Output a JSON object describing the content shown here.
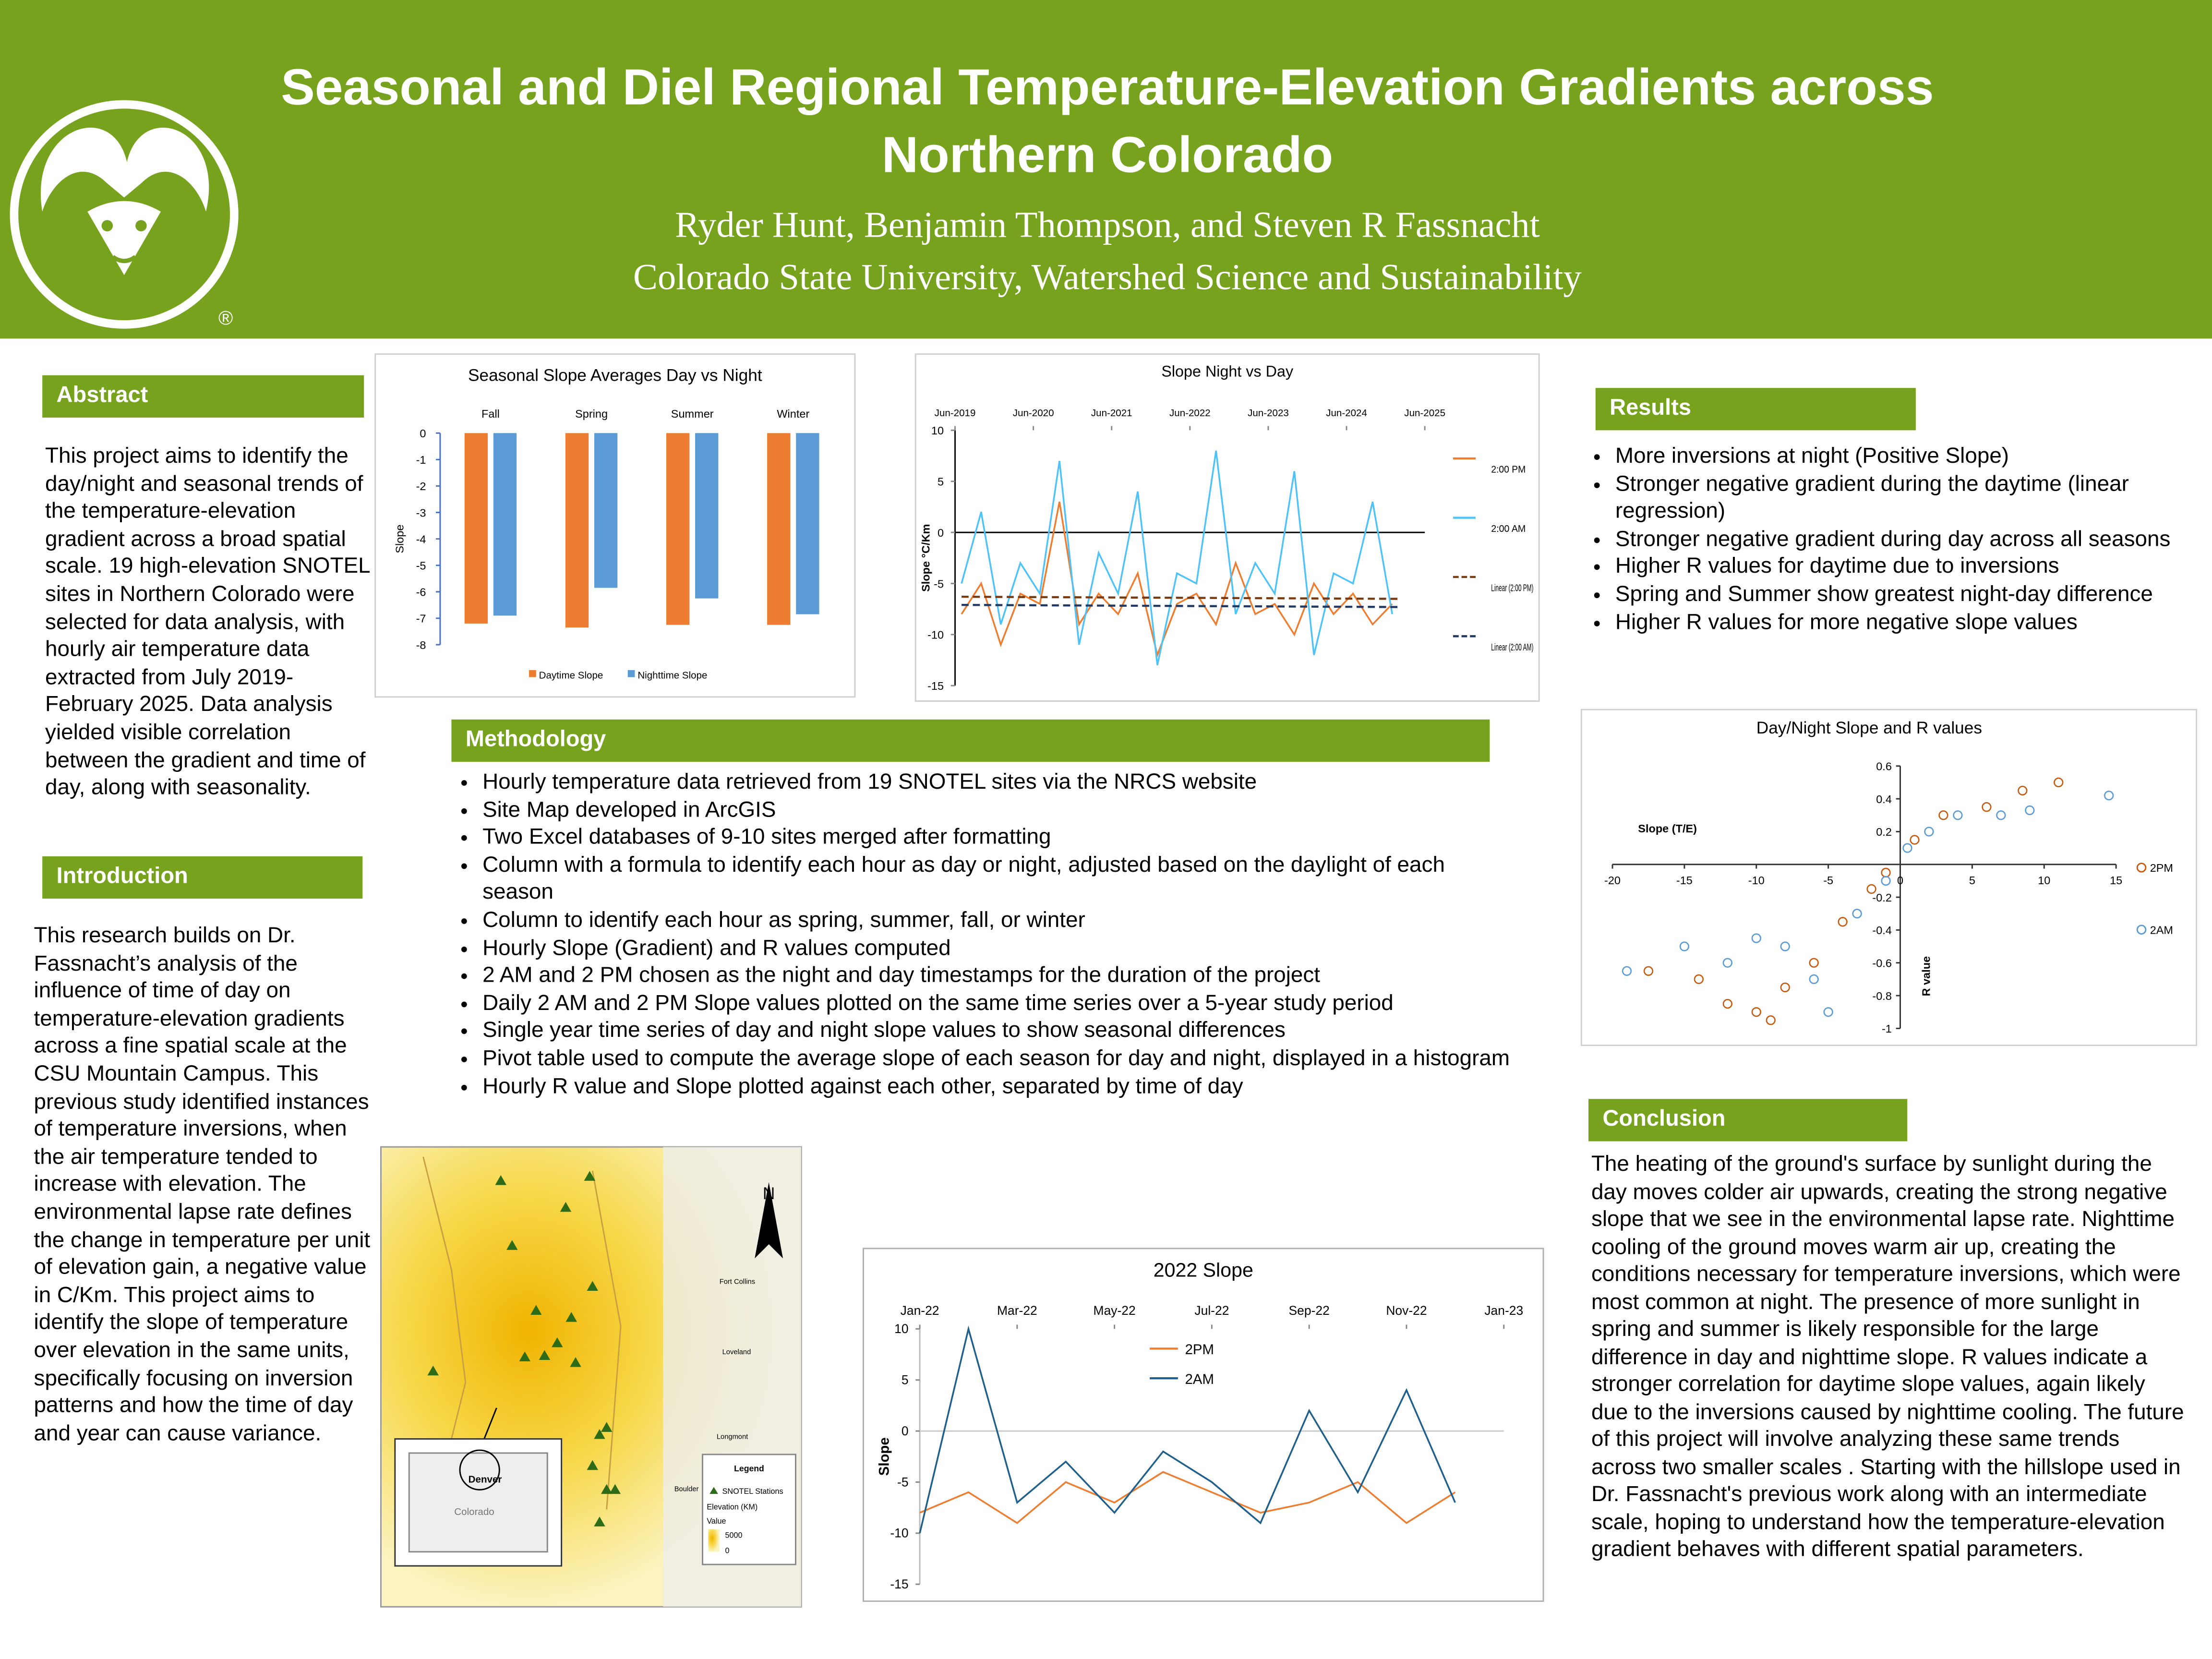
{
  "header": {
    "title": "Seasonal and Diel Regional Temperature-Elevation Gradients across Northern Colorado",
    "authors": "Ryder Hunt, Benjamin Thompson, and Steven R Fassnacht",
    "affiliation": "Colorado State University, Watershed Science and Sustainability",
    "logo_mark": "®"
  },
  "abstract": {
    "heading": "Abstract",
    "text": " This project aims to identify the day/night and seasonal trends of the temperature-elevation gradient across a broad spatial scale. 19 high-elevation SNOTEL sites in Northern Colorado were selected for data analysis, with hourly air temperature data extracted from July 2019-February 2025. Data analysis yielded visible correlation between the gradient and time of day, along with seasonality."
  },
  "introduction": {
    "heading": "Introduction",
    "text": "This research builds on Dr. Fassnacht’s analysis of the influence of time of day on temperature-elevation gradients across a fine spatial scale at the CSU Mountain Campus. This previous study identified instances of temperature inversions, when the air temperature tended to increase with elevation. The environmental lapse rate defines the change in temperature per unit of elevation gain, a negative value in C/Km. This project aims to identify the slope of temperature over elevation in the same units, specifically focusing on inversion patterns and how the time of day and year can cause variance."
  },
  "methodology": {
    "heading": "Methodology",
    "items": [
      "Hourly temperature data retrieved from 19 SNOTEL sites via the NRCS website",
      "Site Map developed in ArcGIS",
      "Two Excel databases of 9-10 sites merged after formatting",
      "Column with a formula to identify each hour as day or night, adjusted based on the daylight of each season",
      "Column to identify each hour as spring, summer, fall, or winter",
      "Hourly Slope (Gradient) and R values computed",
      "2 AM and 2 PM chosen as the night and day timestamps for the duration of the project",
      "Daily 2 AM and 2 PM Slope values plotted on the same time series over a 5-year study period",
      "Single year time series of day and night slope values to show seasonal differences",
      "Pivot table used to compute the average slope of each season for day and night, displayed in a histogram",
      "Hourly R value and Slope plotted against each other, separated by time of day"
    ]
  },
  "results": {
    "heading": "Results",
    "items": [
      "More inversions at night (Positive Slope)",
      "Stronger negative gradient during the daytime (linear regression)",
      "Stronger negative gradient during day across all seasons",
      "Higher R values for daytime due to inversions",
      "Spring and Summer show greatest night-day difference",
      "Higher R values for more negative slope values"
    ]
  },
  "conclusion": {
    "heading": "Conclusion",
    "text": "The heating of the ground's surface by sunlight during the day moves colder air upwards, creating the strong negative slope that we see in the environmental lapse rate. Nighttime cooling of the ground moves warm air up, creating the conditions necessary for temperature inversions, which were most common at night. The presence of more sunlight in spring and summer is likely responsible for the large difference in day and nighttime slope. R values indicate a stronger correlation for daytime slope values, again likely due to the inversions caused by nighttime cooling. The future of this project will involve analyzing these same trends across two smaller scales . Starting with the hillslope used in Dr. Fassnacht's previous work along with an intermediate scale, hoping to understand how the temperature-elevation gradient behaves with different spatial parameters."
  },
  "map": {
    "north": "N",
    "fort_collins": "Fort Collins",
    "loveland": "Loveland",
    "longmont": "Longmont",
    "boulder": "Boulder",
    "denver": "Denver",
    "colorado": "Colorado",
    "legend_title": "Legend",
    "stations": "SNOTEL Stations",
    "elevation": "Elevation (KM)",
    "value": "Value",
    "high": "5000",
    "low": "0"
  },
  "chart_data": [
    {
      "type": "bar",
      "title": "Seasonal Slope Averages Day vs Night",
      "y_label": "Slope",
      "categories": [
        "Fall",
        "Spring",
        "Summer",
        "Winter"
      ],
      "series": [
        {
          "name": "Daytime Slope",
          "color": "#ed7d31",
          "values": [
            -7.2,
            -7.35,
            -7.25,
            -7.25
          ]
        },
        {
          "name": "Nighttime Slope",
          "color": "#5b9bd5",
          "values": [
            -6.9,
            -5.85,
            -6.25,
            -6.85
          ]
        }
      ],
      "ylim": [
        -8,
        0
      ],
      "yticks": [
        0,
        -1,
        -2,
        -3,
        -4,
        -5,
        -6,
        -7,
        -8
      ],
      "grid": false,
      "legend": "bottom"
    },
    {
      "type": "line",
      "title": "Slope Night vs Day",
      "y_label": "Slope °C/Km",
      "xlim": [
        "Jun-2019",
        "Jun-2025"
      ],
      "xticks": [
        "Jun-2019",
        "Jun-2020",
        "Jun-2021",
        "Jun-2022",
        "Jun-2023",
        "Jun-2024",
        "Jun-2025"
      ],
      "ylim": [
        -15,
        10
      ],
      "yticks": [
        -15,
        -10,
        -5,
        0,
        5,
        10
      ],
      "grid": false,
      "legend": "right",
      "series": [
        {
          "name": "2:00 PM",
          "color": "#ed7d31",
          "x": [
            "Jul-2019",
            "Oct-2019",
            "Jan-2020",
            "Apr-2020",
            "Jul-2020",
            "Oct-2020",
            "Jan-2021",
            "Apr-2021",
            "Jul-2021",
            "Oct-2021",
            "Jan-2022",
            "Apr-2022",
            "Jul-2022",
            "Oct-2022",
            "Jan-2023",
            "Apr-2023",
            "Jul-2023",
            "Oct-2023",
            "Jan-2024",
            "Apr-2024",
            "Jul-2024",
            "Oct-2024",
            "Jan-2025"
          ],
          "values": [
            -8,
            -5,
            -11,
            -6,
            -7,
            3,
            -9,
            -6,
            -8,
            -4,
            -12,
            -7,
            -6,
            -9,
            -3,
            -8,
            -7,
            -10,
            -5,
            -8,
            -6,
            -9,
            -7
          ]
        },
        {
          "name": "2:00 AM",
          "color": "#4fc3f7",
          "x": [
            "Jul-2019",
            "Oct-2019",
            "Jan-2020",
            "Apr-2020",
            "Jul-2020",
            "Oct-2020",
            "Jan-2021",
            "Apr-2021",
            "Jul-2021",
            "Oct-2021",
            "Jan-2022",
            "Apr-2022",
            "Jul-2022",
            "Oct-2022",
            "Jan-2023",
            "Apr-2023",
            "Jul-2023",
            "Oct-2023",
            "Jan-2024",
            "Apr-2024",
            "Jul-2024",
            "Oct-2024",
            "Jan-2025"
          ],
          "values": [
            -5,
            2,
            -9,
            -3,
            -6,
            7,
            -11,
            -2,
            -6,
            4,
            -13,
            -4,
            -5,
            8,
            -8,
            -3,
            -6,
            6,
            -12,
            -4,
            -5,
            3,
            -8
          ]
        },
        {
          "name": "Linear (2:00 PM)",
          "color": "#7a3a10",
          "dashed": true,
          "x": [
            "Jul-2019",
            "Feb-2025"
          ],
          "values": [
            -6.3,
            -6.5
          ]
        },
        {
          "name": "Linear (2:00 AM)",
          "color": "#1f3864",
          "dashed": true,
          "x": [
            "Jul-2019",
            "Feb-2025"
          ],
          "values": [
            -7.1,
            -7.3
          ]
        }
      ]
    },
    {
      "type": "scatter",
      "title": "Day/Night Slope and R values",
      "x_label": "Slope (T/E)",
      "y_label": "R value",
      "xlim": [
        -20,
        15
      ],
      "xticks": [
        -20,
        -15,
        -10,
        -5,
        0,
        5,
        10,
        15
      ],
      "ylim": [
        -1,
        0.6
      ],
      "yticks": [
        -1,
        -0.8,
        -0.6,
        -0.4,
        -0.2,
        0.2,
        0.4,
        0.6
      ],
      "grid": false,
      "legend": "right",
      "series": [
        {
          "name": "2PM",
          "color": "#c55a11",
          "x": [
            -12,
            -10,
            -8,
            -6,
            -4,
            -2,
            -1,
            1,
            3,
            6,
            8.5,
            11,
            -17.5,
            -14,
            -9
          ],
          "values": [
            -0.85,
            -0.9,
            -0.75,
            -0.6,
            -0.35,
            -0.15,
            -0.05,
            0.15,
            0.3,
            0.35,
            0.45,
            0.5,
            -0.65,
            -0.7,
            -0.95
          ]
        },
        {
          "name": "2AM",
          "color": "#5b9bd5",
          "x": [
            -19,
            -15,
            -12,
            -10,
            -8,
            -6,
            -5,
            -3,
            -1,
            0.5,
            2,
            4,
            7,
            9,
            14.5
          ],
          "values": [
            -0.65,
            -0.5,
            -0.6,
            -0.45,
            -0.5,
            -0.7,
            -0.9,
            -0.3,
            -0.1,
            0.1,
            0.2,
            0.3,
            0.3,
            0.33,
            0.42
          ]
        }
      ]
    },
    {
      "type": "line",
      "title": "2022 Slope",
      "y_label": "Slope",
      "xlim": [
        "Jan-22",
        "Jan-23"
      ],
      "xticks": [
        "Jan-22",
        "Mar-22",
        "May-22",
        "Jul-22",
        "Sep-22",
        "Nov-22",
        "Jan-23"
      ],
      "ylim": [
        -15,
        10
      ],
      "yticks": [
        -15,
        -10,
        -5,
        0,
        5,
        10
      ],
      "grid": false,
      "legend": "inside",
      "series": [
        {
          "name": "2PM",
          "color": "#ed7d31",
          "x": [
            "Jan-22",
            "Feb-22",
            "Mar-22",
            "Apr-22",
            "May-22",
            "Jun-22",
            "Jul-22",
            "Aug-22",
            "Sep-22",
            "Oct-22",
            "Nov-22",
            "Dec-22"
          ],
          "values": [
            -8,
            -6,
            -9,
            -5,
            -7,
            -4,
            -6,
            -8,
            -7,
            -5,
            -9,
            -6
          ]
        },
        {
          "name": "2AM",
          "color": "#1f5f8b",
          "x": [
            "Jan-22",
            "Feb-22",
            "Mar-22",
            "Apr-22",
            "May-22",
            "Jun-22",
            "Jul-22",
            "Aug-22",
            "Sep-22",
            "Oct-22",
            "Nov-22",
            "Dec-22"
          ],
          "values": [
            -10,
            10,
            -7,
            -3,
            -8,
            -2,
            -5,
            -9,
            2,
            -6,
            4,
            -7
          ]
        }
      ]
    }
  ]
}
